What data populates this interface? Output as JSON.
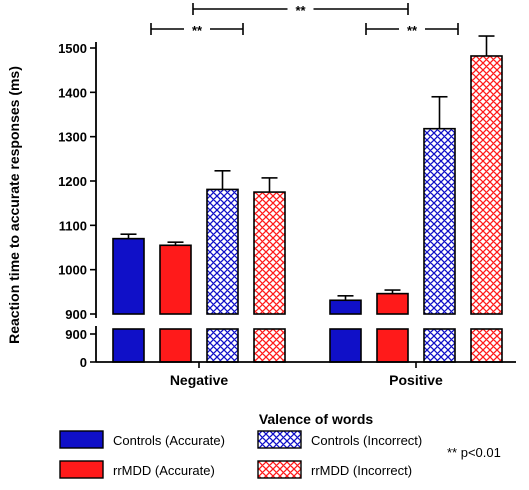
{
  "chart_data": {
    "type": "bar",
    "title": "",
    "xlabel": "Valence of words",
    "ylabel": "Reaction time to accurate responses (ms)",
    "ylim": [
      900,
      1550
    ],
    "broken_axis": {
      "lower_segment": [
        0,
        900
      ],
      "upper_segment": [
        900,
        1550
      ]
    },
    "yticks_upper": [
      900,
      1000,
      1100,
      1200,
      1300,
      1400,
      1500
    ],
    "yticks_lower": [
      0,
      900
    ],
    "categories": [
      "Negative",
      "Positive"
    ],
    "series": [
      {
        "name": "Controls (Accurate)",
        "color": "#1010c8",
        "pattern": "solid",
        "values": [
          1070,
          931
        ],
        "errors": [
          10,
          10
        ]
      },
      {
        "name": "rrMDD (Accurate)",
        "color": "#ff1a1a",
        "pattern": "solid",
        "values": [
          1055,
          946
        ],
        "errors": [
          7,
          8
        ]
      },
      {
        "name": "Controls (Incorrect)",
        "color": "#1010c8",
        "pattern": "crosshatch",
        "values": [
          1181,
          1318
        ],
        "errors": [
          42,
          72
        ]
      },
      {
        "name": "rrMDD (Incorrect)",
        "color": "#ff1a1a",
        "pattern": "crosshatch",
        "values": [
          1175,
          1482
        ],
        "errors": [
          32,
          45
        ]
      }
    ],
    "legend_position": "bottom",
    "significance": [
      {
        "label": "**",
        "from": "Negative: Controls (Accurate)",
        "to": "Negative: Controls (Incorrect)"
      },
      {
        "label": "**",
        "from": "Negative: rrMDD (Accurate)",
        "to": "Positive: rrMDD (Accurate)"
      },
      {
        "label": "**",
        "from": "Positive: Controls (Incorrect)",
        "to": "Positive: rrMDD (Incorrect)"
      }
    ],
    "note": "** p<0.01",
    "grid": false
  }
}
